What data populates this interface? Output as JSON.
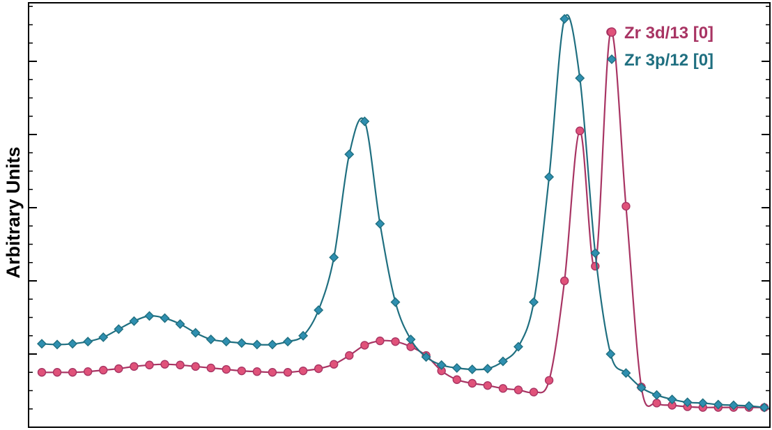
{
  "chart_data": {
    "type": "line",
    "title": "",
    "xlabel": "",
    "ylabel": "Arbitrary Units",
    "xlim": [
      0,
      47
    ],
    "ylim": [
      0,
      5.8
    ],
    "grid": false,
    "legend_position": "top-right",
    "series": [
      {
        "name": "Zr 3d/13 [0]",
        "color": "#e0527a",
        "line_color": "#a83463",
        "marker": "circle",
        "x": [
          0,
          1,
          2,
          3,
          4,
          5,
          6,
          7,
          8,
          9,
          10,
          11,
          12,
          13,
          14,
          15,
          16,
          17,
          18,
          19,
          20,
          21,
          22,
          23,
          24,
          25,
          26,
          27,
          28,
          29,
          30,
          31,
          32,
          33,
          34,
          35,
          36,
          37,
          38,
          39,
          40,
          41,
          42,
          43,
          44,
          45,
          46,
          47
        ],
        "y": [
          0.75,
          0.75,
          0.75,
          0.76,
          0.78,
          0.8,
          0.83,
          0.85,
          0.86,
          0.85,
          0.83,
          0.81,
          0.79,
          0.77,
          0.76,
          0.75,
          0.75,
          0.77,
          0.8,
          0.86,
          0.98,
          1.12,
          1.18,
          1.17,
          1.1,
          0.98,
          0.77,
          0.65,
          0.6,
          0.57,
          0.53,
          0.51,
          0.48,
          0.64,
          2.0,
          4.05,
          2.2,
          5.4,
          3.02,
          0.55,
          0.33,
          0.3,
          0.28,
          0.27,
          0.27,
          0.27,
          0.27,
          0.27
        ]
      },
      {
        "name": "Zr 3p/12 [0]",
        "color": "#2f8fb0",
        "line_color": "#1f6f80",
        "marker": "diamond",
        "x": [
          0,
          1,
          2,
          3,
          4,
          5,
          6,
          7,
          8,
          9,
          10,
          11,
          12,
          13,
          14,
          15,
          16,
          17,
          18,
          19,
          20,
          21,
          22,
          23,
          24,
          25,
          26,
          27,
          28,
          29,
          30,
          31,
          32,
          33,
          34,
          35,
          36,
          37,
          38,
          39,
          40,
          41,
          42,
          43,
          44,
          45,
          46,
          47
        ],
        "y": [
          1.14,
          1.13,
          1.14,
          1.17,
          1.23,
          1.34,
          1.45,
          1.52,
          1.49,
          1.41,
          1.29,
          1.2,
          1.17,
          1.15,
          1.13,
          1.13,
          1.17,
          1.25,
          1.6,
          2.32,
          3.73,
          4.18,
          2.78,
          1.71,
          1.2,
          0.96,
          0.85,
          0.81,
          0.79,
          0.8,
          0.9,
          1.1,
          1.71,
          3.42,
          5.58,
          4.77,
          2.38,
          1.0,
          0.74,
          0.54,
          0.44,
          0.38,
          0.34,
          0.33,
          0.31,
          0.3,
          0.29,
          0.27
        ]
      }
    ]
  }
}
